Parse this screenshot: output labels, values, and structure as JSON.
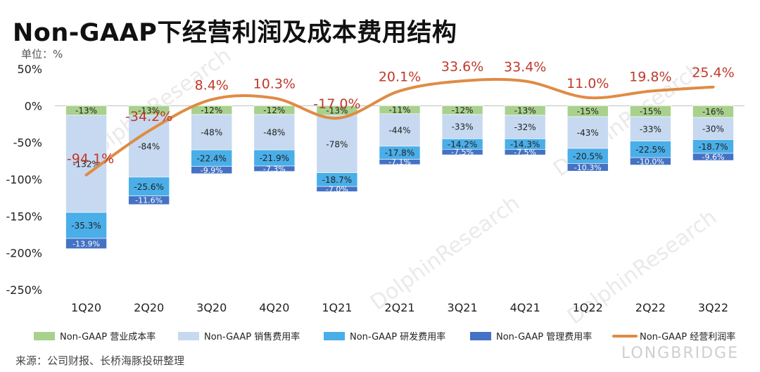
{
  "title": "Non-GAAP下经营利润及成本费用结构",
  "unit": "单位：%",
  "source": "来源：公司财报、长桥海豚投研整理",
  "watermark": {
    "text": "DolphinResearch",
    "brand": "LONGBRIDGE"
  },
  "colors": {
    "cost": "#a9d18e",
    "sales": "#c6d9f0",
    "rd": "#4aaee8",
    "admin": "#4472c4",
    "line": "#e08b44",
    "line_label": "#c0392b"
  },
  "chart_data": {
    "type": "bar",
    "stacked": true,
    "title": "Non-GAAP下经营利润及成本费用结构",
    "ylabel": "%",
    "ylim": [
      -250,
      50
    ],
    "yticks": [
      50,
      0,
      -50,
      -100,
      -150,
      -200,
      -250
    ],
    "ytick_labels": [
      "50%",
      "0%",
      "-50%",
      "-100%",
      "-150%",
      "-200%",
      "-250%"
    ],
    "categories": [
      "1Q20",
      "2Q20",
      "3Q20",
      "4Q20",
      "1Q21",
      "2Q21",
      "3Q21",
      "4Q21",
      "1Q22",
      "2Q22",
      "3Q22"
    ],
    "series": [
      {
        "name": "Non-GAAP 营业成本率",
        "key": "cost",
        "kind": "bar",
        "values": [
          -13,
          -13,
          -12,
          -12,
          -13,
          -11,
          -12,
          -13,
          -15,
          -15,
          -16
        ],
        "labels": [
          "-13%",
          "-13%",
          "-12%",
          "-12%",
          "-13%",
          "-11%",
          "-12%",
          "-13%",
          "-15%",
          "-15%",
          "-16%"
        ]
      },
      {
        "name": "Non-GAAP 销售费用率",
        "key": "sales",
        "kind": "bar",
        "values": [
          -132,
          -84,
          -48,
          -48,
          -78,
          -44,
          -33,
          -32,
          -43,
          -33,
          -30
        ],
        "labels": [
          "-132%",
          "-84%",
          "-48%",
          "-48%",
          "-78%",
          "-44%",
          "-33%",
          "-32%",
          "-43%",
          "-33%",
          "-30%"
        ]
      },
      {
        "name": "Non-GAAP 研发费用率",
        "key": "rd",
        "kind": "bar",
        "values": [
          -35.3,
          -25.6,
          -22.4,
          -21.9,
          -18.7,
          -17.8,
          -14.2,
          -14.3,
          -20.5,
          -22.5,
          -18.7
        ],
        "labels": [
          "-35.3%",
          "-25.6%",
          "-22.4%",
          "-21.9%",
          "-18.7%",
          "-17.8%",
          "-14.2%",
          "-14.3%",
          "-20.5%",
          "-22.5%",
          "-18.7%"
        ]
      },
      {
        "name": "Non-GAAP 管理费用率",
        "key": "admin",
        "kind": "bar",
        "values": [
          -13.9,
          -11.6,
          -9.9,
          -7.3,
          -7.0,
          -7.1,
          -7.5,
          -7.5,
          -10.3,
          -10.0,
          -9.6
        ],
        "labels": [
          "-13.9%",
          "-11.6%",
          "-9.9%",
          "-7.3%",
          "-7.0%",
          "-7.1%",
          "-7.5%",
          "-7.5%",
          "-10.3%",
          "-10.0%",
          "-9.6%"
        ]
      },
      {
        "name": "Non-GAAP 经营利润率",
        "key": "line",
        "kind": "line",
        "values": [
          -94.1,
          -34.2,
          8.4,
          10.3,
          -17.0,
          20.1,
          33.6,
          33.4,
          11.0,
          19.8,
          25.4
        ],
        "labels": [
          "-94.1%",
          "-34.2%",
          "8.4%",
          "10.3%",
          "-17.0%",
          "20.1%",
          "33.6%",
          "33.4%",
          "11.0%",
          "19.8%",
          "25.4%"
        ]
      }
    ],
    "legend_position": "bottom"
  }
}
